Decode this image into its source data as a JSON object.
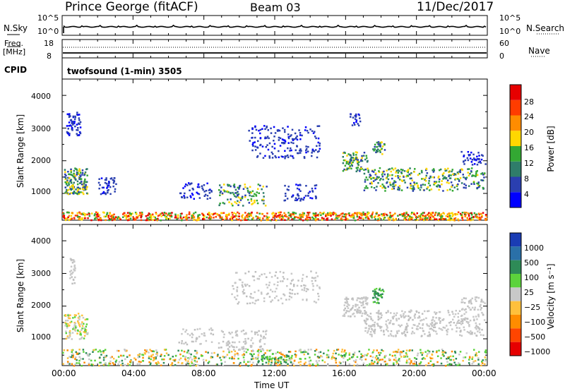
{
  "header": {
    "station": "Prince George (fitACF)",
    "beam": "Beam 03",
    "date": "11/Dec/2017"
  },
  "panels": {
    "nsky_label": "N.Sky",
    "nsky_ticks": [
      "10^5",
      "10^0"
    ],
    "nsearch_label": "N.Search",
    "nsearch_ticks": [
      "10^5",
      "10^0"
    ],
    "freq_label_1": "Freq.",
    "freq_label_2": "[MHz]",
    "freq_ticks": [
      "18",
      "8"
    ],
    "nave_label": "Nave",
    "nave_ticks": [
      "60",
      "0"
    ],
    "cpid_label": "CPID",
    "cpid_value": "twofsound (1-min) 3505"
  },
  "x_axis": {
    "label": "Time UT",
    "ticks": [
      "00:00",
      "04:00",
      "08:00",
      "12:00",
      "16:00",
      "20:00",
      "00:00"
    ]
  },
  "colors": {
    "power_scale": [
      "#0000ff",
      "#2a3fb0",
      "#2f7d6a",
      "#33a833",
      "#ffd700",
      "#ff8c00",
      "#ff3c00",
      "#e60000"
    ],
    "velocity_scale": [
      "#1a3cb4",
      "#2a70a8",
      "#2e8b57",
      "#5cd33c",
      "#c8c8c8",
      "#ffc03c",
      "#ff8c00",
      "#ff4500",
      "#e60000"
    ]
  },
  "chart_data": [
    {
      "type": "heatmap",
      "ylabel": "Slant Range [km]",
      "yticks": [
        "1000",
        "2000",
        "3000",
        "4000"
      ],
      "ylim": [
        180,
        4500
      ],
      "xlim_hours": [
        0,
        24
      ],
      "colorbar_label": "Power [dB]",
      "colorbar_ticks": [
        "4",
        "8",
        "12",
        "16",
        "20",
        "24",
        "28"
      ],
      "colorbar_range": [
        0,
        32
      ]
    },
    {
      "type": "heatmap",
      "ylabel": "Slant Range [km]",
      "yticks": [
        "1000",
        "2000",
        "3000",
        "4000"
      ],
      "ylim": [
        180,
        4500
      ],
      "xlim_hours": [
        0,
        24
      ],
      "colorbar_label": "Velocity [m s⁻¹]",
      "colorbar_ticks": [
        "1000",
        "500",
        "100",
        "25",
        "−25",
        "−100",
        "−500",
        "−1000"
      ]
    }
  ]
}
